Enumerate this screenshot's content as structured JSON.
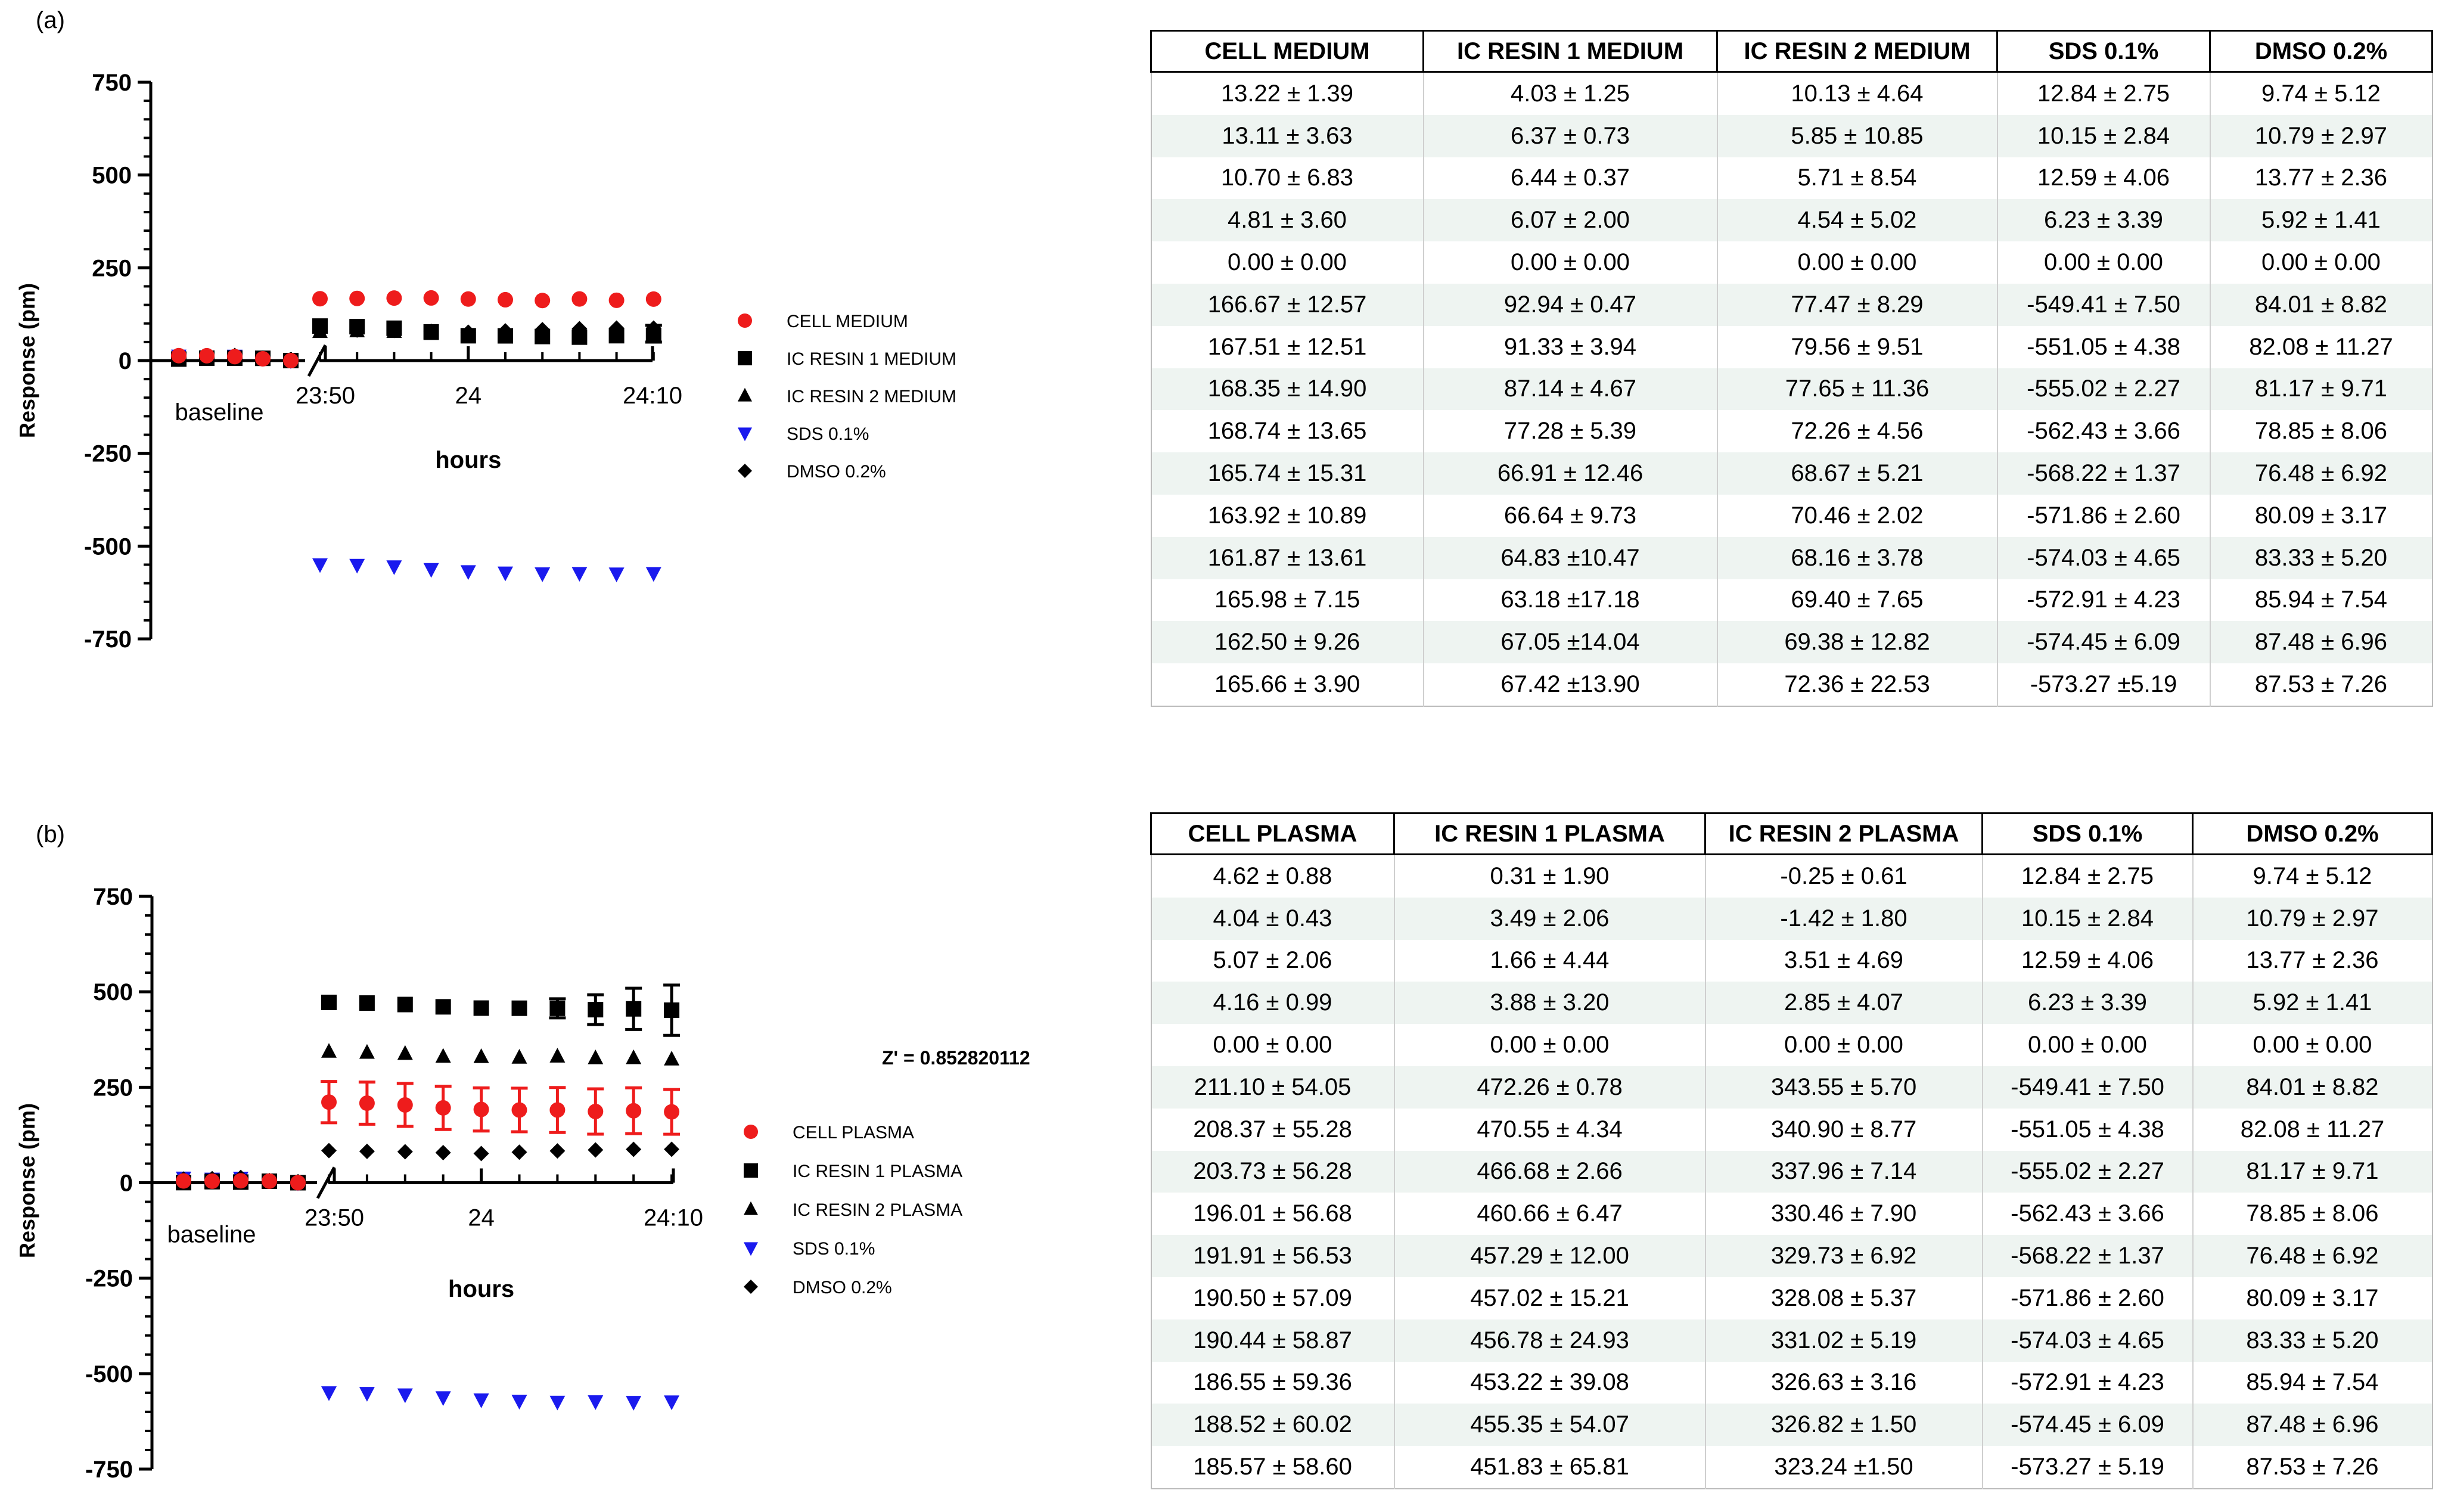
{
  "colors": {
    "red": "#ee1c1c",
    "black": "#000000",
    "blue": "#1a1aee"
  },
  "panels": [
    {
      "label": "(a)",
      "z_prime": "",
      "chart_data": {
        "type": "scatter",
        "ylabel": "Response (pm)",
        "xlabel": "hours",
        "yticks": [
          750,
          500,
          250,
          0,
          -250,
          -500,
          -750
        ],
        "ylim": [
          -750,
          750
        ],
        "xtick_labels": [
          "23:50",
          "24",
          "24:10"
        ],
        "baseline_label": "baseline",
        "series": [
          {
            "name": "CELL MEDIUM",
            "marker": "circle",
            "color": "#ee1c1c",
            "values": [
              13.22,
              13.11,
              10.7,
              4.81,
              0.0,
              166.67,
              167.51,
              168.35,
              168.74,
              165.74,
              163.92,
              161.87,
              165.98,
              162.5,
              165.66
            ],
            "errors": [
              1.39,
              3.63,
              6.83,
              3.6,
              0.0,
              12.57,
              12.51,
              14.9,
              13.65,
              15.31,
              10.89,
              13.61,
              7.15,
              9.26,
              3.9
            ]
          },
          {
            "name": "IC RESIN 1 MEDIUM",
            "marker": "square",
            "color": "#000000",
            "values": [
              4.03,
              6.37,
              6.44,
              6.07,
              0.0,
              92.94,
              91.33,
              87.14,
              77.28,
              66.91,
              66.64,
              64.83,
              63.18,
              67.05,
              67.42
            ],
            "errors": [
              1.25,
              0.73,
              0.37,
              2.0,
              0.0,
              0.47,
              3.94,
              4.67,
              5.39,
              12.46,
              9.73,
              10.47,
              17.18,
              14.04,
              13.9
            ]
          },
          {
            "name": "IC RESIN 2 MEDIUM",
            "marker": "triangle-up",
            "color": "#000000",
            "values": [
              10.13,
              5.85,
              5.71,
              4.54,
              0.0,
              77.47,
              79.56,
              77.65,
              72.26,
              68.67,
              70.46,
              68.16,
              69.4,
              69.38,
              72.36
            ],
            "errors": [
              4.64,
              10.85,
              8.54,
              5.02,
              0.0,
              8.29,
              9.51,
              11.36,
              4.56,
              5.21,
              2.02,
              3.78,
              7.65,
              12.82,
              22.53
            ]
          },
          {
            "name": "SDS 0.1%",
            "marker": "triangle-down",
            "color": "#1a1aee",
            "values": [
              12.84,
              10.15,
              12.59,
              6.23,
              0.0,
              -549.41,
              -551.05,
              -555.02,
              -562.43,
              -568.22,
              -571.86,
              -574.03,
              -572.91,
              -574.45,
              -573.27
            ],
            "errors": [
              2.75,
              2.84,
              4.06,
              3.39,
              0.0,
              7.5,
              4.38,
              2.27,
              3.66,
              1.37,
              2.6,
              4.65,
              4.23,
              6.09,
              5.19
            ]
          },
          {
            "name": "DMSO 0.2%",
            "marker": "diamond",
            "color": "#000000",
            "values": [
              9.74,
              10.79,
              13.77,
              5.92,
              0.0,
              84.01,
              82.08,
              81.17,
              78.85,
              76.48,
              80.09,
              83.33,
              85.94,
              87.48,
              87.53
            ],
            "errors": [
              5.12,
              2.97,
              2.36,
              1.41,
              0.0,
              8.82,
              11.27,
              9.71,
              8.06,
              6.92,
              3.17,
              5.2,
              7.54,
              6.96,
              7.26
            ]
          }
        ]
      },
      "table": {
        "headers": [
          "CELL MEDIUM",
          "IC RESIN 1 MEDIUM",
          "IC RESIN 2 MEDIUM",
          "SDS 0.1%",
          "DMSO 0.2%"
        ],
        "rows": [
          [
            "13.22 ± 1.39",
            "4.03 ± 1.25",
            "10.13 ± 4.64",
            "12.84 ± 2.75",
            "9.74 ± 5.12"
          ],
          [
            "13.11 ± 3.63",
            "6.37 ± 0.73",
            "5.85 ± 10.85",
            "10.15 ± 2.84",
            "10.79 ± 2.97"
          ],
          [
            "10.70 ± 6.83",
            "6.44 ± 0.37",
            "5.71 ± 8.54",
            "12.59  ± 4.06",
            "13.77 ± 2.36"
          ],
          [
            "4.81 ± 3.60",
            "6.07 ± 2.00",
            "4.54 ± 5.02",
            "6.23 ± 3.39",
            "5.92 ± 1.41"
          ],
          [
            "0.00  ± 0.00",
            "0.00 ± 0.00",
            "0.00 ± 0.00",
            "0.00 ± 0.00",
            "0.00 ± 0.00"
          ],
          [
            "166.67 ± 12.57",
            "92.94 ± 0.47",
            "77.47 ± 8.29",
            "-549.41 ± 7.50",
            "84.01 ± 8.82"
          ],
          [
            "167.51 ± 12.51",
            "91.33 ± 3.94",
            "79.56 ± 9.51",
            "-551.05 ± 4.38",
            "82.08 ± 11.27"
          ],
          [
            "168.35 ± 14.90",
            "87.14 ± 4.67",
            "77.65 ± 11.36",
            "-555.02 ± 2.27",
            "81.17 ± 9.71"
          ],
          [
            "168.74 ± 13.65",
            "77.28 ± 5.39",
            "72.26 ± 4.56",
            "-562.43 ± 3.66",
            "78.85 ± 8.06"
          ],
          [
            "165.74 ± 15.31",
            "66.91 ± 12.46",
            "68.67 ± 5.21",
            "-568.22 ± 1.37",
            "76.48 ± 6.92"
          ],
          [
            "163.92 ± 10.89",
            "66.64 ± 9.73",
            "70.46 ± 2.02",
            "-571.86 ± 2.60",
            "80.09 ± 3.17"
          ],
          [
            "161.87 ± 13.61",
            "64.83 ±10.47",
            "68.16 ± 3.78",
            "-574.03 ± 4.65",
            "83.33 ± 5.20"
          ],
          [
            "165.98 ± 7.15",
            "63.18 ±17.18",
            "69.40 ± 7.65",
            "-572.91 ± 4.23",
            "85.94 ± 7.54"
          ],
          [
            "162.50 ± 9.26",
            "67.05 ±14.04",
            "69.38 ± 12.82",
            "-574.45 ± 6.09",
            "87.48 ± 6.96"
          ],
          [
            "165.66 ± 3.90",
            "67.42 ±13.90",
            "72.36 ± 22.53",
            "-573.27 ±5.19",
            "87.53 ± 7.26"
          ]
        ]
      }
    },
    {
      "label": "(b)",
      "z_prime": "Z' = 0.852820112",
      "chart_data": {
        "type": "scatter",
        "ylabel": "Response (pm)",
        "xlabel": "hours",
        "yticks": [
          750,
          500,
          250,
          0,
          -250,
          -500,
          -750
        ],
        "ylim": [
          -750,
          750
        ],
        "xtick_labels": [
          "23:50",
          "24",
          "24:10"
        ],
        "baseline_label": "baseline",
        "series": [
          {
            "name": "CELL PLASMA",
            "marker": "circle",
            "color": "#ee1c1c",
            "values": [
              4.62,
              4.04,
              5.07,
              4.16,
              0.0,
              211.1,
              208.37,
              203.73,
              196.01,
              191.91,
              190.5,
              190.44,
              186.55,
              188.52,
              185.57
            ],
            "errors": [
              0.88,
              0.43,
              2.06,
              0.99,
              0.0,
              54.05,
              55.28,
              56.28,
              56.68,
              56.53,
              57.09,
              58.87,
              59.36,
              60.02,
              58.6
            ]
          },
          {
            "name": "IC RESIN 1 PLASMA",
            "marker": "square",
            "color": "#000000",
            "values": [
              0.31,
              3.49,
              1.66,
              3.88,
              0.0,
              472.26,
              470.55,
              466.68,
              460.66,
              457.29,
              457.02,
              456.78,
              453.22,
              455.35,
              451.83
            ],
            "errors": [
              1.9,
              2.06,
              4.44,
              3.2,
              0.0,
              0.78,
              4.34,
              2.66,
              6.47,
              12.0,
              15.21,
              24.93,
              39.08,
              54.07,
              65.81
            ]
          },
          {
            "name": "IC RESIN 2 PLASMA",
            "marker": "triangle-up",
            "color": "#000000",
            "values": [
              -0.25,
              -1.42,
              3.51,
              2.85,
              0.0,
              343.55,
              340.9,
              337.96,
              330.46,
              329.73,
              328.08,
              331.02,
              326.63,
              326.82,
              323.24
            ],
            "errors": [
              0.61,
              1.8,
              4.69,
              4.07,
              0.0,
              5.7,
              8.77,
              7.14,
              7.9,
              6.92,
              5.37,
              5.19,
              3.16,
              1.5,
              1.5
            ]
          },
          {
            "name": "SDS 0.1%",
            "marker": "triangle-down",
            "color": "#1a1aee",
            "values": [
              12.84,
              10.15,
              12.59,
              6.23,
              0.0,
              -549.41,
              -551.05,
              -555.02,
              -562.43,
              -568.22,
              -571.86,
              -574.03,
              -572.91,
              -574.45,
              -573.27
            ],
            "errors": [
              2.75,
              2.84,
              4.06,
              3.39,
              0.0,
              7.5,
              4.38,
              2.27,
              3.66,
              1.37,
              2.6,
              4.65,
              4.23,
              6.09,
              5.19
            ]
          },
          {
            "name": "DMSO 0.2%",
            "marker": "diamond",
            "color": "#000000",
            "values": [
              9.74,
              10.79,
              13.77,
              5.92,
              0.0,
              84.01,
              82.08,
              81.17,
              78.85,
              76.48,
              80.09,
              83.33,
              85.94,
              87.48,
              87.53
            ],
            "errors": [
              5.12,
              2.97,
              2.36,
              1.41,
              0.0,
              8.82,
              11.27,
              9.71,
              8.06,
              6.92,
              3.17,
              5.2,
              7.54,
              6.96,
              7.26
            ]
          }
        ]
      },
      "table": {
        "headers": [
          "CELL PLASMA",
          "IC RESIN 1 PLASMA",
          "IC RESIN 2 PLASMA",
          "SDS 0.1%",
          "DMSO 0.2%"
        ],
        "rows": [
          [
            "4.62 ± 0.88",
            "0.31 ± 1.90",
            "-0.25 ± 0.61",
            "12.84 ± 2.75",
            "9.74 ± 5.12"
          ],
          [
            "4.04 ± 0.43",
            "3.49 ± 2.06",
            "-1.42 ± 1.80",
            "10.15 ± 2.84",
            "10.79 ± 2.97"
          ],
          [
            "5.07 ± 2.06",
            "1.66 ± 4.44",
            "3.51 ± 4.69",
            "12.59 ± 4.06",
            "13.77 ± 2.36"
          ],
          [
            "4.16 ± 0.99",
            "3.88 ± 3.20",
            "2.85 ± 4.07",
            "6.23 ± 3.39",
            "5.92 ± 1.41"
          ],
          [
            "0.00 ± 0.00",
            "0.00 ± 0.00",
            "0.00 ± 0.00",
            "0.00  ± 0.00",
            "0.00 ± 0.00"
          ],
          [
            "211.10 ± 54.05",
            "472.26 ± 0.78",
            "343.55 ± 5.70",
            "-549.41 ± 7.50",
            "84.01 ± 8.82"
          ],
          [
            "208.37 ± 55.28",
            "470.55 ± 4.34",
            "340.90 ± 8.77",
            "-551.05 ± 4.38",
            "82.08 ± 11.27"
          ],
          [
            "203.73 ± 56.28",
            "466.68 ± 2.66",
            "337.96 ± 7.14",
            "-555.02 ± 2.27",
            "81.17 ± 9.71"
          ],
          [
            "196.01 ± 56.68",
            "460.66 ± 6.47",
            "330.46 ± 7.90",
            "-562.43 ± 3.66",
            "78.85 ± 8.06"
          ],
          [
            "191.91 ± 56.53",
            "457.29 ± 12.00",
            "329.73 ± 6.92",
            "-568.22 ± 1.37",
            "76.48 ± 6.92"
          ],
          [
            "190.50 ± 57.09",
            "457.02 ± 15.21",
            "328.08 ± 5.37",
            "-571.86 ± 2.60",
            "80.09 ± 3.17"
          ],
          [
            "190.44 ± 58.87",
            "456.78 ± 24.93",
            "331.02 ± 5.19",
            "-574.03 ± 4.65",
            "83.33 ± 5.20"
          ],
          [
            "186.55 ± 59.36",
            "453.22 ± 39.08",
            "326.63 ± 3.16",
            "-572.91 ± 4.23",
            "85.94 ± 7.54"
          ],
          [
            "188.52 ± 60.02",
            "455.35 ± 54.07",
            "326.82 ± 1.50",
            "-574.45 ± 6.09",
            "87.48 ± 6.96"
          ],
          [
            "185.57 ± 58.60",
            "451.83 ± 65.81",
            "323.24 ±1.50",
            "-573.27 ± 5.19",
            "87.53 ± 7.26"
          ]
        ]
      }
    }
  ]
}
